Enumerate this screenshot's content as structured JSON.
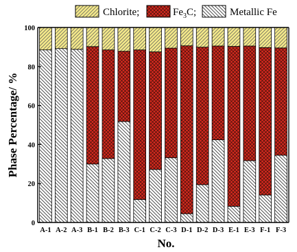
{
  "chart_data": {
    "type": "bar",
    "stacked": true,
    "xlabel": "No.",
    "ylabel": "Phase Percentage/ %",
    "ylim": [
      0,
      100
    ],
    "yticks": [
      "0",
      "20",
      "40",
      "60",
      "80",
      "100"
    ],
    "grid": false,
    "legend_position": "top",
    "categories": [
      "A-1",
      "A-2",
      "A-3",
      "B-1",
      "B-2",
      "B-3",
      "C-1",
      "C-2",
      "C-3",
      "D-1",
      "D-2",
      "D-3",
      "E-1",
      "E-3",
      "F-1",
      "F-3"
    ],
    "series": [
      {
        "name": "Metallic Fe",
        "color": "#ffffff",
        "pattern": "diagonal-hatch",
        "values": [
          88.5,
          89.2,
          88.8,
          30.0,
          32.8,
          51.8,
          11.8,
          27.2,
          33.2,
          4.5,
          19.4,
          42.4,
          8.3,
          31.7,
          14.1,
          34.5
        ]
      },
      {
        "name": "Fe3C",
        "color": "#d42a1e",
        "pattern": "cross-hatch",
        "values": [
          0,
          0,
          0,
          60.2,
          55.7,
          36.0,
          76.7,
          60.3,
          56.2,
          86.1,
          70.5,
          48.1,
          82.0,
          58.8,
          75.6,
          55.0
        ]
      },
      {
        "name": "Chlorite",
        "color": "#f3e88a",
        "pattern": "diagonal-hatch",
        "values": [
          11.5,
          10.8,
          11.2,
          9.8,
          11.5,
          12.2,
          11.5,
          12.5,
          10.6,
          9.4,
          10.1,
          9.5,
          9.7,
          9.5,
          10.3,
          10.5
        ]
      }
    ],
    "legend": [
      {
        "series": "Chlorite",
        "text": "Chlorite;"
      },
      {
        "series": "Fe3C",
        "text_main": "Fe",
        "text_sub": "3",
        "text_tail": "C;"
      },
      {
        "series": "Metallic Fe",
        "text": "Metallic Fe"
      }
    ]
  }
}
